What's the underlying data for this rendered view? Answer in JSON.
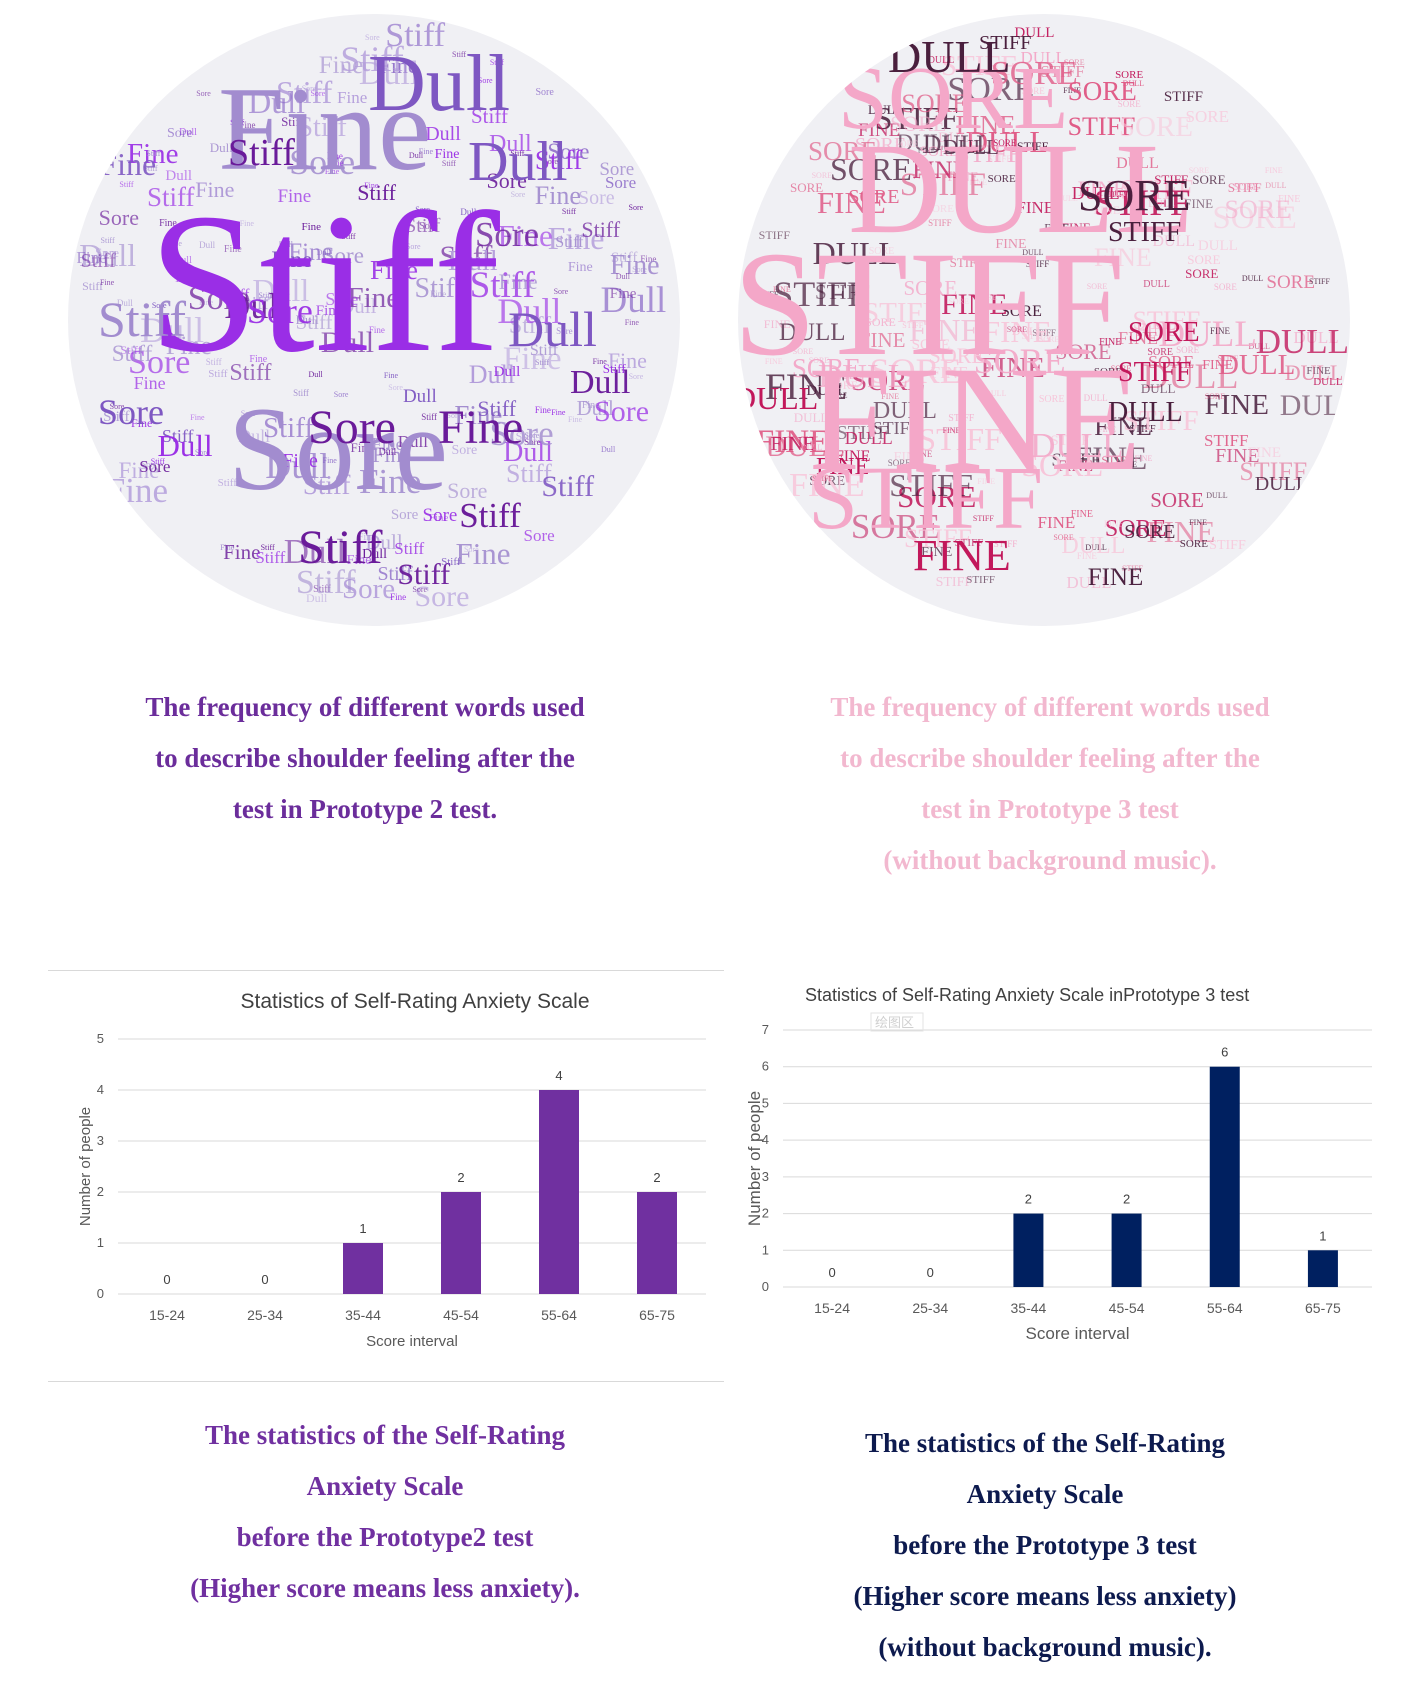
{
  "word_clouds": [
    {
      "words": [
        "Stiff",
        "Fine",
        "Sore",
        "Dull"
      ],
      "colors": [
        "#9a2ee6",
        "#7e57c2",
        "#b39ddb",
        "#6a1b9a",
        "#a28ccf"
      ],
      "caption_lines": [
        "The frequency of different words used",
        "to describe shoulder feeling after the",
        "test in Prototype 2 test."
      ]
    },
    {
      "words": [
        "STIFF",
        "FINE",
        "SORE",
        "DULL"
      ],
      "colors": [
        "#f4a7c8",
        "#e05a86",
        "#c2185b",
        "#4a1f3d",
        "#f8c6da"
      ],
      "caption_lines": [
        "The frequency of different words used",
        "to describe shoulder feeling after the",
        "test in Prototype 3 test",
        "(without background music)."
      ]
    }
  ],
  "chart_data": [
    {
      "type": "bar",
      "title": "Statistics of Self-Rating Anxiety Scale",
      "xlabel": "Score interval",
      "ylabel": "Number of people",
      "categories": [
        "15-24",
        "25-34",
        "35-44",
        "45-54",
        "55-64",
        "65-75"
      ],
      "values": [
        0,
        0,
        1,
        2,
        4,
        2
      ],
      "ylim": [
        0,
        5
      ],
      "yticks": [
        0,
        1,
        2,
        3,
        4,
        5
      ],
      "bar_color": "#7030a0",
      "grid": true,
      "data_labels": true,
      "caption_lines": [
        "The statistics of the Self-Rating",
        "Anxiety Scale",
        "before the Prototype2 test",
        "(Higher score means less anxiety)."
      ]
    },
    {
      "type": "bar",
      "title": "Statistics of Self-Rating Anxiety Scale inPrototype 3 test",
      "xlabel": "Score interval",
      "ylabel": "Number of people",
      "categories": [
        "15-24",
        "25-34",
        "35-44",
        "45-54",
        "55-64",
        "65-75"
      ],
      "values": [
        0,
        0,
        2,
        2,
        6,
        1
      ],
      "ylim": [
        0,
        7
      ],
      "yticks": [
        0,
        1,
        2,
        3,
        4,
        5,
        6,
        7
      ],
      "bar_color": "#002060",
      "grid": true,
      "data_labels": true,
      "annotation": "绘图区",
      "caption_lines": [
        "The statistics of the Self-Rating",
        "Anxiety Scale",
        "before the Prototype 3 test",
        "(Higher score means less anxiety)",
        "(without background music)."
      ]
    }
  ]
}
